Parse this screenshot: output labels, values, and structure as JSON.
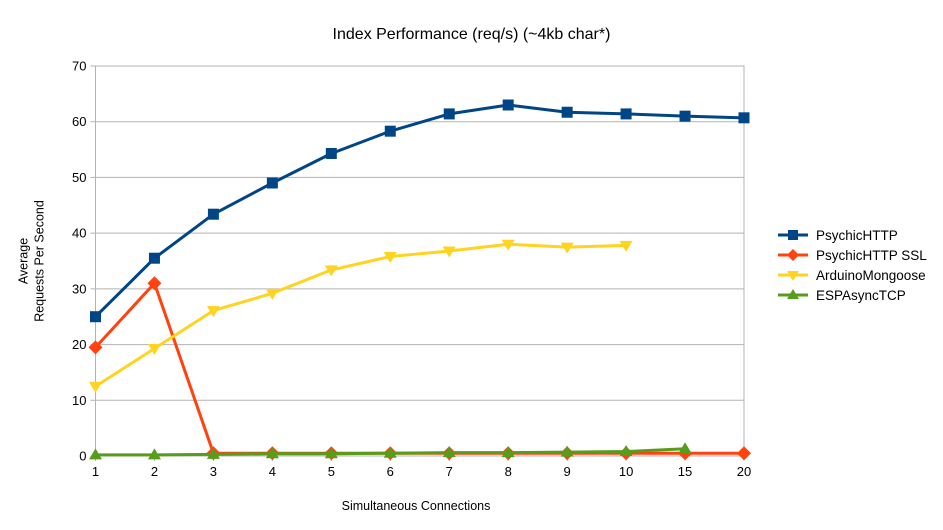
{
  "chart_data": {
    "type": "line",
    "title": "Index Performance (req/s) (~4kb char*)",
    "xlabel": "Simultaneous Connections",
    "ylabel_lines": [
      "Average",
      "Requests Per Second"
    ],
    "ylabel": "Average Requests Per Second",
    "categories": [
      "1",
      "2",
      "3",
      "4",
      "5",
      "6",
      "7",
      "8",
      "9",
      "10",
      "15",
      "20"
    ],
    "y_ticks": [
      0,
      10,
      20,
      30,
      40,
      50,
      60,
      70
    ],
    "ylim": [
      0,
      70
    ],
    "grid": "horizontal",
    "legend_position": "right",
    "grid_color": "#b3b3b3",
    "axis_color": "#b3b3b3",
    "text_color": "#000000",
    "background_color": "#ffffff",
    "series": [
      {
        "name": "PsychicHTTP",
        "color": "#004586",
        "marker": "square",
        "values": [
          25.0,
          35.5,
          43.4,
          49.0,
          54.3,
          58.3,
          61.4,
          63.0,
          61.7,
          61.4,
          61.0,
          60.7
        ]
      },
      {
        "name": "PsychicHTTP SSL",
        "color": "#FF420E",
        "marker": "diamond",
        "values": [
          19.5,
          31.0,
          0.5,
          0.5,
          0.5,
          0.5,
          0.5,
          0.5,
          0.5,
          0.5,
          0.5,
          0.5
        ]
      },
      {
        "name": "ArduinoMongoose",
        "color": "#FFD320",
        "marker": "triangle-down",
        "values": [
          12.5,
          19.3,
          26.1,
          29.2,
          33.4,
          35.8,
          36.8,
          38.0,
          37.5,
          37.8,
          null,
          null
        ]
      },
      {
        "name": "ESPAsyncTCP",
        "color": "#579D1C",
        "marker": "triangle-up",
        "values": [
          0.2,
          0.2,
          0.3,
          0.4,
          0.4,
          0.5,
          0.6,
          0.6,
          0.7,
          0.8,
          1.3,
          null
        ]
      }
    ]
  }
}
